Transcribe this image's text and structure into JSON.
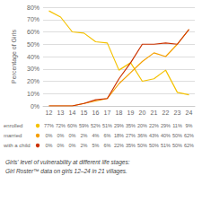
{
  "chart_data": {
    "type": "line",
    "x": [
      12,
      13,
      14,
      15,
      16,
      17,
      18,
      19,
      20,
      21,
      22,
      23,
      24
    ],
    "xlim": [
      11.5,
      24.5
    ],
    "xticks": [
      12,
      13,
      14,
      15,
      16,
      17,
      18,
      19,
      20,
      21,
      22,
      23,
      24
    ],
    "ylabel": "Percentage of Girls",
    "ylim": [
      0,
      80
    ],
    "yticks": [
      {
        "value": 0,
        "label": "0%"
      },
      {
        "value": 10,
        "label": "10%"
      },
      {
        "value": 20,
        "label": "20%"
      },
      {
        "value": 30,
        "label": "30%"
      },
      {
        "value": 40,
        "label": "40%"
      },
      {
        "value": 50,
        "label": "50%"
      },
      {
        "value": 60,
        "label": "60%"
      },
      {
        "value": 70,
        "label": "70%"
      },
      {
        "value": 80,
        "label": "80%"
      }
    ],
    "grid": true,
    "series": [
      {
        "name": "enrolled",
        "color": "#F5C200",
        "values": [
          77,
          72,
          60,
          59,
          52,
          51,
          29,
          35,
          20,
          22,
          29,
          11,
          9
        ],
        "value_labels": [
          "77%",
          "72%",
          "60%",
          "59%",
          "52%",
          "51%",
          "29%",
          "35%",
          "20%",
          "22%",
          "29%",
          "11%",
          "9%"
        ]
      },
      {
        "name": "married",
        "color": "#F5A000",
        "values": [
          0,
          0,
          0,
          2,
          4,
          6,
          18,
          27,
          36,
          43,
          40,
          50,
          62
        ],
        "value_labels": [
          "0%",
          "0%",
          "0%",
          "2%",
          "4%",
          "6%",
          "18%",
          "27%",
          "36%",
          "43%",
          "40%",
          "50%",
          "62%"
        ]
      },
      {
        "name": "with a child",
        "color": "#CC3300",
        "values": [
          0,
          0,
          0,
          2,
          5,
          6,
          22,
          35,
          50,
          50,
          51,
          50,
          62
        ],
        "value_labels": [
          "0%",
          "0%",
          "0%",
          "2%",
          "5%",
          "6%",
          "22%",
          "35%",
          "50%",
          "50%",
          "51%",
          "50%",
          "62%"
        ]
      }
    ],
    "annotations": [
      "Girls' level of vulnerability at different life stages:",
      "Girl Roster™ data on girls 12–24 in 21 villages."
    ]
  }
}
